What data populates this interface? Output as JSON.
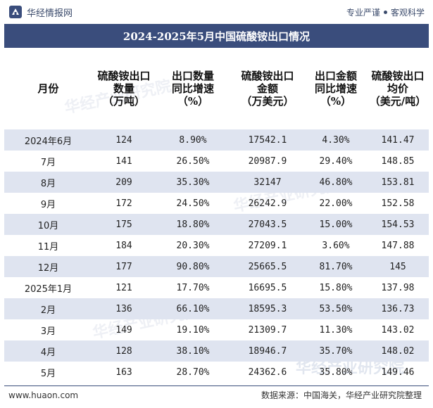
{
  "brand": {
    "name": "华经情报网",
    "tagline_left": "专业严谨",
    "tagline_right": "客观科学"
  },
  "title": "2024-2025年5月中国硫酸铵出口情况",
  "headers": [
    [
      "月份"
    ],
    [
      "硫酸铵出口",
      "数量",
      "（万吨）"
    ],
    [
      "出口数量",
      "同比增速",
      "（%）"
    ],
    [
      "硫酸铵出口",
      "金额",
      "（万美元）"
    ],
    [
      "出口金额",
      "同比增速",
      "（%）"
    ],
    [
      "硫酸铵出口",
      "均价",
      "（美元/吨）"
    ]
  ],
  "rows": [
    [
      "2024年6月",
      "124",
      "8.90%",
      "17542.1",
      "4.30%",
      "141.47"
    ],
    [
      "7月",
      "141",
      "26.50%",
      "20987.9",
      "29.40%",
      "148.85"
    ],
    [
      "8月",
      "209",
      "35.30%",
      "32147",
      "46.80%",
      "153.81"
    ],
    [
      "9月",
      "172",
      "24.50%",
      "26242.9",
      "22.00%",
      "152.58"
    ],
    [
      "10月",
      "175",
      "18.80%",
      "27043.5",
      "15.00%",
      "154.53"
    ],
    [
      "11月",
      "184",
      "20.30%",
      "27209.1",
      "3.60%",
      "147.88"
    ],
    [
      "12月",
      "177",
      "90.80%",
      "25665.5",
      "81.70%",
      "145"
    ],
    [
      "2025年1月",
      "121",
      "17.70%",
      "16695.5",
      "15.80%",
      "137.98"
    ],
    [
      "2月",
      "136",
      "66.10%",
      "18595.3",
      "53.50%",
      "136.73"
    ],
    [
      "3月",
      "149",
      "19.10%",
      "21309.7",
      "11.30%",
      "143.02"
    ],
    [
      "4月",
      "128",
      "38.10%",
      "18946.7",
      "35.70%",
      "148.02"
    ],
    [
      "5月",
      "163",
      "28.70%",
      "24362.6",
      "35.80%",
      "149.46"
    ]
  ],
  "footer": {
    "website": "www.huaon.com",
    "source": "数据来源：中国海关，华经产业研究院整理"
  },
  "watermark_text": "华经产业研究院",
  "colors": {
    "title_bg": "#3a4d7c",
    "row_shade": "#dfe4f0",
    "brand_text": "#3a4a6b"
  }
}
